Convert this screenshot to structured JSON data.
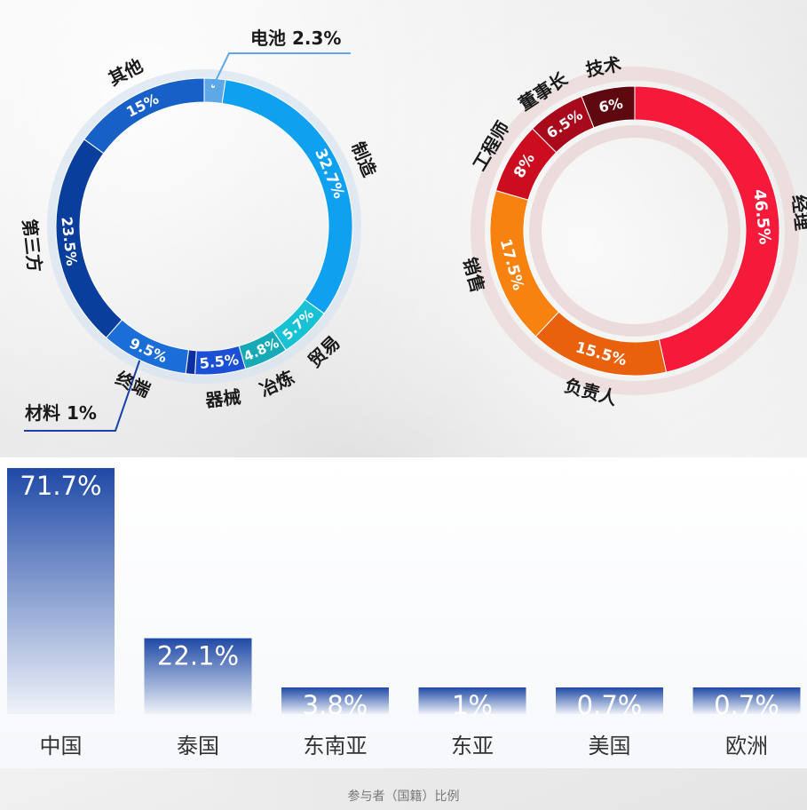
{
  "footer": {
    "title": "参与者（国籍）比例"
  },
  "chart_data": [
    {
      "type": "pie",
      "variant": "donut",
      "series": [
        {
          "label": "电池",
          "value": 2.3,
          "value_label": "2.3%",
          "color": "#5fa8e8",
          "callout": true
        },
        {
          "label": "制造",
          "value": 32.7,
          "value_label": "32.7%",
          "color": "#10a0f0"
        },
        {
          "label": "贸易",
          "value": 5.7,
          "value_label": "5.7%",
          "color": "#18c2d4"
        },
        {
          "label": "冶炼",
          "value": 4.8,
          "value_label": "4.8%",
          "color": "#16aab7"
        },
        {
          "label": "器械",
          "value": 5.5,
          "value_label": "5.5%",
          "color": "#1a4fd6"
        },
        {
          "label": "材料",
          "value": 1,
          "value_label": "1%",
          "color": "#0e2fa0",
          "callout": true
        },
        {
          "label": "终端",
          "value": 9.5,
          "value_label": "9.5%",
          "color": "#1b6ed8"
        },
        {
          "label": "第三方",
          "value": 23.5,
          "value_label": "23.5%",
          "color": "#0a3e9c"
        },
        {
          "label": "其他",
          "value": 15,
          "value_label": "15%",
          "color": "#1760c8"
        }
      ]
    },
    {
      "type": "pie",
      "variant": "donut",
      "series": [
        {
          "label": "经理",
          "value": 46.5,
          "value_label": "46.5%",
          "color": "#f5193a"
        },
        {
          "label": "负责人",
          "value": 15.5,
          "value_label": "15.5%",
          "color": "#e9600d"
        },
        {
          "label": "销售",
          "value": 17.5,
          "value_label": "17.5%",
          "color": "#f7820f"
        },
        {
          "label": "工程师",
          "value": 8,
          "value_label": "8%",
          "color": "#cc0d1f"
        },
        {
          "label": "董事长",
          "value": 6.5,
          "value_label": "6.5%",
          "color": "#a80a1c"
        },
        {
          "label": "技术",
          "value": 6,
          "value_label": "6%",
          "color": "#5e0810"
        }
      ]
    },
    {
      "type": "bar",
      "title": "参与者（国籍）比例",
      "categories": [
        "中国",
        "泰国",
        "东南亚",
        "东亚",
        "美国",
        "欧洲"
      ],
      "values": [
        71.7,
        22.1,
        3.8,
        1,
        0.7,
        0.7
      ],
      "value_labels": [
        "71.7%",
        "22.1%",
        "3.8%",
        "1%",
        "0.7%",
        "0.7%"
      ],
      "bar_color": "#1f49a6"
    }
  ]
}
